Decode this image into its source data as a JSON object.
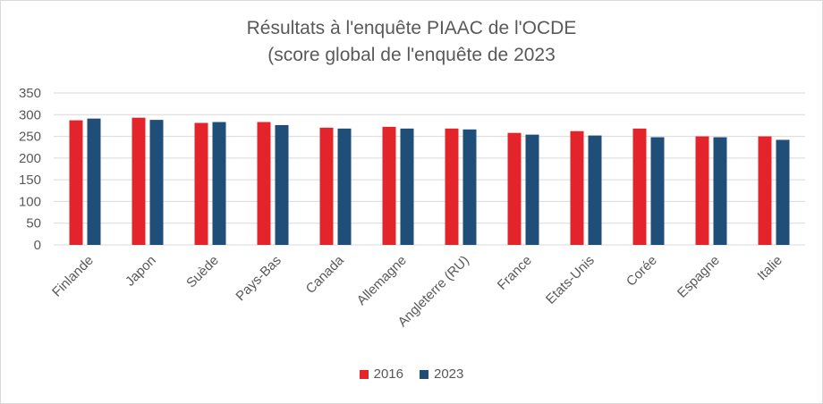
{
  "chart_data": {
    "type": "bar",
    "title": "Résultats à l'enquête PIAAC de l'OCDE",
    "subtitle": "(score global de l'enquête de 2023",
    "categories": [
      "Finlande",
      "Japon",
      "Suède",
      "Pays-Bas",
      "Canada",
      "Allemagne",
      "Angleterre (RU)",
      "France",
      "Etats-Unis",
      "Corée",
      "Espagne",
      "Italie"
    ],
    "series": [
      {
        "name": "2016",
        "color": "#e3242b",
        "values": [
          287,
          293,
          281,
          283,
          270,
          272,
          268,
          258,
          262,
          268,
          250,
          250
        ]
      },
      {
        "name": "2023",
        "color": "#1f4e79",
        "values": [
          291,
          288,
          283,
          276,
          268,
          268,
          266,
          254,
          252,
          248,
          248,
          242
        ]
      }
    ],
    "ylim": [
      0,
      350
    ],
    "yticks": [
      0,
      50,
      100,
      150,
      200,
      250,
      300,
      350
    ],
    "ytick_labels": [
      "0",
      "50",
      "100",
      "150",
      "200",
      "250",
      "300",
      "350"
    ],
    "grid": true,
    "legend_position": "bottom"
  }
}
